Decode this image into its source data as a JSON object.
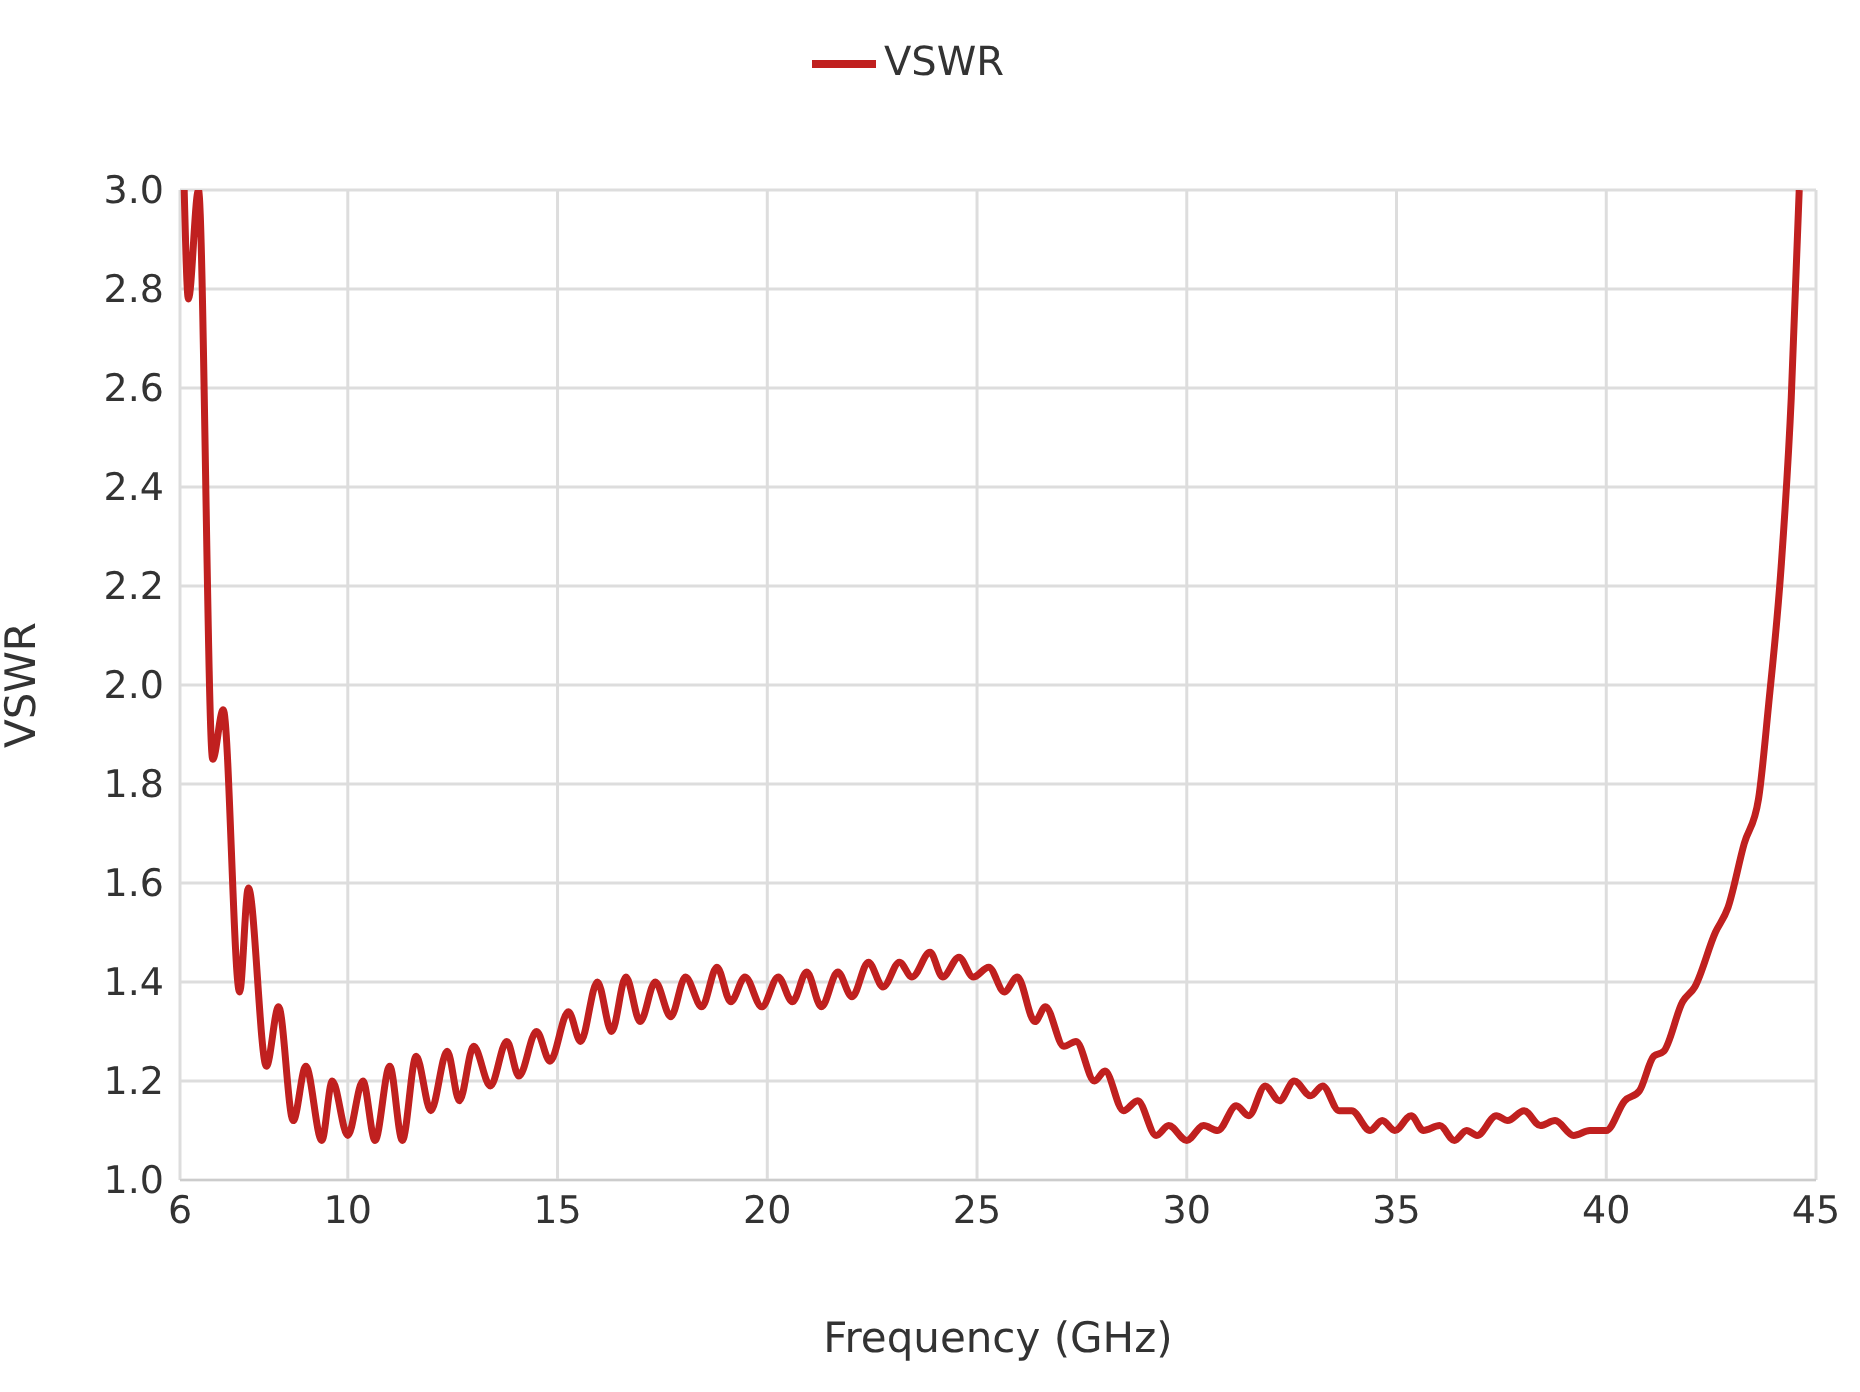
{
  "chart_data": {
    "type": "line",
    "xlabel": "Frequency (GHz)",
    "ylabel": "VSWR",
    "xlim": [
      6,
      45
    ],
    "xticks": [
      6,
      10,
      15,
      20,
      25,
      30,
      35,
      40,
      45
    ],
    "ylim": [
      1,
      3
    ],
    "yticks": [
      {
        "value": 1,
        "label": "1.0"
      },
      1.2,
      1.4,
      1.6,
      1.8,
      {
        "value": 2,
        "label": "2.0"
      },
      2.2,
      2.4,
      2.6,
      2.8,
      {
        "value": 3,
        "label": "3.0"
      }
    ],
    "grid": true,
    "legend": "top",
    "marker": "none",
    "line_style": "solid",
    "series": [
      {
        "name": "VSWR",
        "color": "#c0201f",
        "x": [
          6.1,
          6.2,
          6.44,
          6.78,
          7.03,
          7.42,
          7.63,
          8.06,
          8.35,
          8.7,
          9.0,
          9.38,
          9.63,
          10.0,
          10.36,
          10.65,
          11.0,
          11.3,
          11.63,
          11.98,
          12.37,
          12.66,
          13.0,
          13.4,
          13.79,
          14.08,
          14.5,
          14.82,
          15.26,
          15.55,
          15.95,
          16.29,
          16.63,
          16.97,
          17.33,
          17.7,
          18.05,
          18.44,
          18.8,
          19.13,
          19.47,
          19.87,
          20.26,
          20.6,
          20.94,
          21.29,
          21.68,
          22.02,
          22.41,
          22.76,
          23.15,
          23.45,
          23.88,
          24.18,
          24.57,
          24.91,
          25.28,
          25.65,
          25.96,
          26.38,
          26.63,
          27.07,
          27.36,
          27.8,
          28.05,
          28.49,
          28.83,
          29.27,
          29.57,
          30.0,
          30.4,
          30.74,
          31.18,
          31.48,
          31.87,
          32.21,
          32.56,
          32.95,
          33.24,
          33.63,
          33.93,
          34.37,
          34.66,
          34.96,
          35.35,
          35.64,
          36.03,
          36.38,
          36.67,
          36.92,
          37.38,
          37.65,
          38.04,
          38.43,
          38.78,
          39.22,
          39.61,
          40.0,
          40.44,
          40.79,
          41.13,
          41.37,
          41.82,
          42.11,
          42.6,
          42.9,
          43.29,
          43.63,
          43.87,
          44.17,
          44.41,
          44.6
        ],
        "values": [
          3.0,
          2.78,
          3.0,
          1.85,
          1.95,
          1.38,
          1.59,
          1.23,
          1.35,
          1.12,
          1.23,
          1.08,
          1.2,
          1.09,
          1.2,
          1.08,
          1.23,
          1.08,
          1.25,
          1.14,
          1.26,
          1.16,
          1.27,
          1.19,
          1.28,
          1.21,
          1.3,
          1.24,
          1.34,
          1.28,
          1.4,
          1.3,
          1.41,
          1.32,
          1.4,
          1.33,
          1.41,
          1.35,
          1.43,
          1.36,
          1.41,
          1.35,
          1.41,
          1.36,
          1.42,
          1.35,
          1.42,
          1.37,
          1.44,
          1.39,
          1.44,
          1.41,
          1.46,
          1.41,
          1.45,
          1.41,
          1.43,
          1.38,
          1.41,
          1.32,
          1.35,
          1.27,
          1.28,
          1.2,
          1.22,
          1.14,
          1.16,
          1.09,
          1.11,
          1.08,
          1.11,
          1.1,
          1.15,
          1.13,
          1.19,
          1.16,
          1.2,
          1.17,
          1.19,
          1.14,
          1.14,
          1.1,
          1.12,
          1.1,
          1.13,
          1.1,
          1.11,
          1.08,
          1.1,
          1.09,
          1.13,
          1.12,
          1.14,
          1.11,
          1.12,
          1.09,
          1.1,
          1.1,
          1.16,
          1.18,
          1.25,
          1.26,
          1.36,
          1.39,
          1.5,
          1.55,
          1.68,
          1.77,
          1.96,
          2.24,
          2.58,
          3.0
        ]
      }
    ]
  }
}
